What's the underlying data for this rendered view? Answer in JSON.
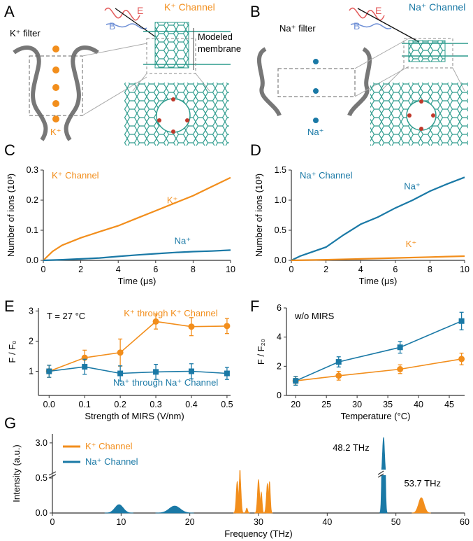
{
  "colors": {
    "k": "#f28e1c",
    "na": "#1a79a6",
    "teal": "#2f9c8e",
    "gray": "#888888"
  },
  "panelA": {
    "letter": "A",
    "filter_label": "K⁺ filter",
    "channel_title": "K⁺ Channel",
    "ion_label": "K⁺",
    "membrane_label_1": "Modeled",
    "membrane_label_2": "membrane",
    "E": "E",
    "B": "B"
  },
  "panelB": {
    "letter": "B",
    "filter_label": "Na⁺ filter",
    "channel_title": "Na⁺ Channel",
    "ion_label": "Na⁺",
    "E": "E",
    "B": "B"
  },
  "chart_data": [
    {
      "id": "C",
      "type": "line",
      "letter": "C",
      "title": "K⁺ Channel",
      "xlabel": "Time (μs)",
      "ylabel": "Number of ions (10³)",
      "xlim": [
        0,
        10
      ],
      "ylim": [
        0,
        0.3
      ],
      "xticks": [
        "0",
        "2",
        "4",
        "6",
        "8",
        "10"
      ],
      "yticks": [
        "0.0",
        "0.1",
        "0.2",
        "0.3"
      ],
      "series": [
        {
          "name": "K⁺",
          "color": "orange",
          "x": [
            0,
            0.5,
            1,
            2,
            3,
            4,
            5,
            6,
            7,
            8,
            9,
            10
          ],
          "values": [
            0,
            0.03,
            0.05,
            0.075,
            0.095,
            0.115,
            0.14,
            0.165,
            0.19,
            0.215,
            0.245,
            0.275
          ]
        },
        {
          "name": "Na⁺",
          "color": "blue",
          "x": [
            0,
            1,
            2,
            3,
            4,
            5,
            6,
            7,
            8,
            9,
            10
          ],
          "values": [
            0,
            0.002,
            0.005,
            0.008,
            0.013,
            0.018,
            0.022,
            0.026,
            0.029,
            0.031,
            0.034
          ]
        }
      ]
    },
    {
      "id": "D",
      "type": "line",
      "letter": "D",
      "title": "Na⁺ Channel",
      "xlabel": "Time (μs)",
      "ylabel": "Number of ions (10³)",
      "xlim": [
        0,
        10
      ],
      "ylim": [
        0,
        1.5
      ],
      "xticks": [
        "0",
        "2",
        "4",
        "6",
        "8",
        "10"
      ],
      "yticks": [
        "0.0",
        "0.5",
        "1.0",
        "1.5"
      ],
      "series": [
        {
          "name": "Na⁺",
          "color": "blue",
          "x": [
            0,
            0.5,
            1,
            2,
            3,
            4,
            5,
            6,
            7,
            8,
            9,
            10
          ],
          "values": [
            0,
            0.07,
            0.12,
            0.22,
            0.42,
            0.6,
            0.72,
            0.87,
            1.0,
            1.15,
            1.27,
            1.38
          ]
        },
        {
          "name": "K⁺",
          "color": "orange",
          "x": [
            0,
            2,
            4,
            6,
            8,
            10
          ],
          "values": [
            0,
            0.01,
            0.025,
            0.04,
            0.055,
            0.07
          ]
        }
      ]
    },
    {
      "id": "E",
      "type": "line",
      "letter": "E",
      "annotation": "T = 27 °C",
      "xlabel": "Strength of MIRS (V/nm)",
      "ylabel": "F / F₀",
      "xlim": [
        -0.03,
        0.51
      ],
      "ylim": [
        0.2,
        3.1
      ],
      "xticks": [
        "0.0",
        "0.1",
        "0.2",
        "0.3",
        "0.4",
        "0.5"
      ],
      "xtick_values": [
        0,
        0.1,
        0.2,
        0.3,
        0.4,
        0.5
      ],
      "yticks": [
        "1",
        "2",
        "3"
      ],
      "ytick_values": [
        1,
        2,
        3
      ],
      "series": [
        {
          "name": "K⁺ through K⁺ Channel",
          "color": "orange",
          "marker": "circle",
          "x": [
            0,
            0.1,
            0.2,
            0.3,
            0.4,
            0.5
          ],
          "values": [
            1.0,
            1.45,
            1.62,
            2.65,
            2.48,
            2.5
          ],
          "err": [
            0.2,
            0.25,
            0.45,
            0.25,
            0.3,
            0.25
          ]
        },
        {
          "name": "Na⁺ through Na⁺ Channel",
          "color": "blue",
          "marker": "square",
          "x": [
            0,
            0.1,
            0.2,
            0.3,
            0.4,
            0.5
          ],
          "values": [
            1.0,
            1.15,
            0.93,
            0.98,
            1.0,
            0.93
          ],
          "err": [
            0.2,
            0.25,
            0.25,
            0.25,
            0.25,
            0.2
          ]
        }
      ]
    },
    {
      "id": "F",
      "type": "line",
      "letter": "F",
      "annotation": "w/o MIRS",
      "xlabel": "Temperature (°C)",
      "ylabel": "F / F₂₀",
      "xlim": [
        18.5,
        47.5
      ],
      "ylim": [
        0,
        6
      ],
      "xticks": [
        "20",
        "25",
        "30",
        "35",
        "40",
        "45"
      ],
      "xtick_values": [
        20,
        25,
        30,
        35,
        40,
        45
      ],
      "yticks": [
        "0",
        "2",
        "4",
        "6"
      ],
      "ytick_values": [
        0,
        2,
        4,
        6
      ],
      "series": [
        {
          "name": "K⁺",
          "color": "orange",
          "marker": "circle",
          "x": [
            20,
            27,
            37,
            47
          ],
          "values": [
            1.0,
            1.35,
            1.8,
            2.5
          ],
          "err": [
            0.3,
            0.3,
            0.3,
            0.4
          ]
        },
        {
          "name": "Na⁺",
          "color": "blue",
          "marker": "square",
          "x": [
            20,
            27,
            37,
            47
          ],
          "values": [
            1.0,
            2.3,
            3.3,
            5.1
          ],
          "err": [
            0.3,
            0.35,
            0.4,
            0.6
          ]
        }
      ]
    },
    {
      "id": "G",
      "type": "area",
      "letter": "G",
      "xlabel": "Frequency (THz)",
      "ylabel": "Intensity (a.u.)",
      "xlim": [
        0,
        60
      ],
      "ylim_lower": [
        0,
        0.5
      ],
      "ylim_upper_tick": 3.0,
      "xticks": [
        "0",
        "10",
        "20",
        "30",
        "40",
        "50",
        "60"
      ],
      "yticks": [
        "0.0",
        "0.5",
        "3.0"
      ],
      "legend": [
        {
          "name": "K⁺ Channel",
          "color": "orange"
        },
        {
          "name": "Na⁺ Channel",
          "color": "blue"
        }
      ],
      "annotations": [
        "48.2 THz",
        "53.7 THz"
      ],
      "series": [
        {
          "name": "Na⁺ Channel",
          "color": "blue",
          "peaks": [
            {
              "center": 9.7,
              "width": 0.6,
              "height": 0.12
            },
            {
              "center": 17.8,
              "width": 0.8,
              "height": 0.1
            },
            {
              "center": 48.2,
              "width": 0.15,
              "height": 3.5
            }
          ]
        },
        {
          "name": "K⁺ Channel",
          "color": "orange",
          "peaks": [
            {
              "center": 26.9,
              "width": 0.15,
              "height": 0.45
            },
            {
              "center": 27.3,
              "width": 0.15,
              "height": 0.55
            },
            {
              "center": 28.3,
              "width": 0.12,
              "height": 0.07
            },
            {
              "center": 30.0,
              "width": 0.15,
              "height": 0.48
            },
            {
              "center": 30.4,
              "width": 0.12,
              "height": 0.3
            },
            {
              "center": 31.3,
              "width": 0.15,
              "height": 0.42
            },
            {
              "center": 31.6,
              "width": 0.12,
              "height": 0.45
            },
            {
              "center": 53.7,
              "width": 0.4,
              "height": 0.22
            }
          ]
        }
      ]
    }
  ]
}
